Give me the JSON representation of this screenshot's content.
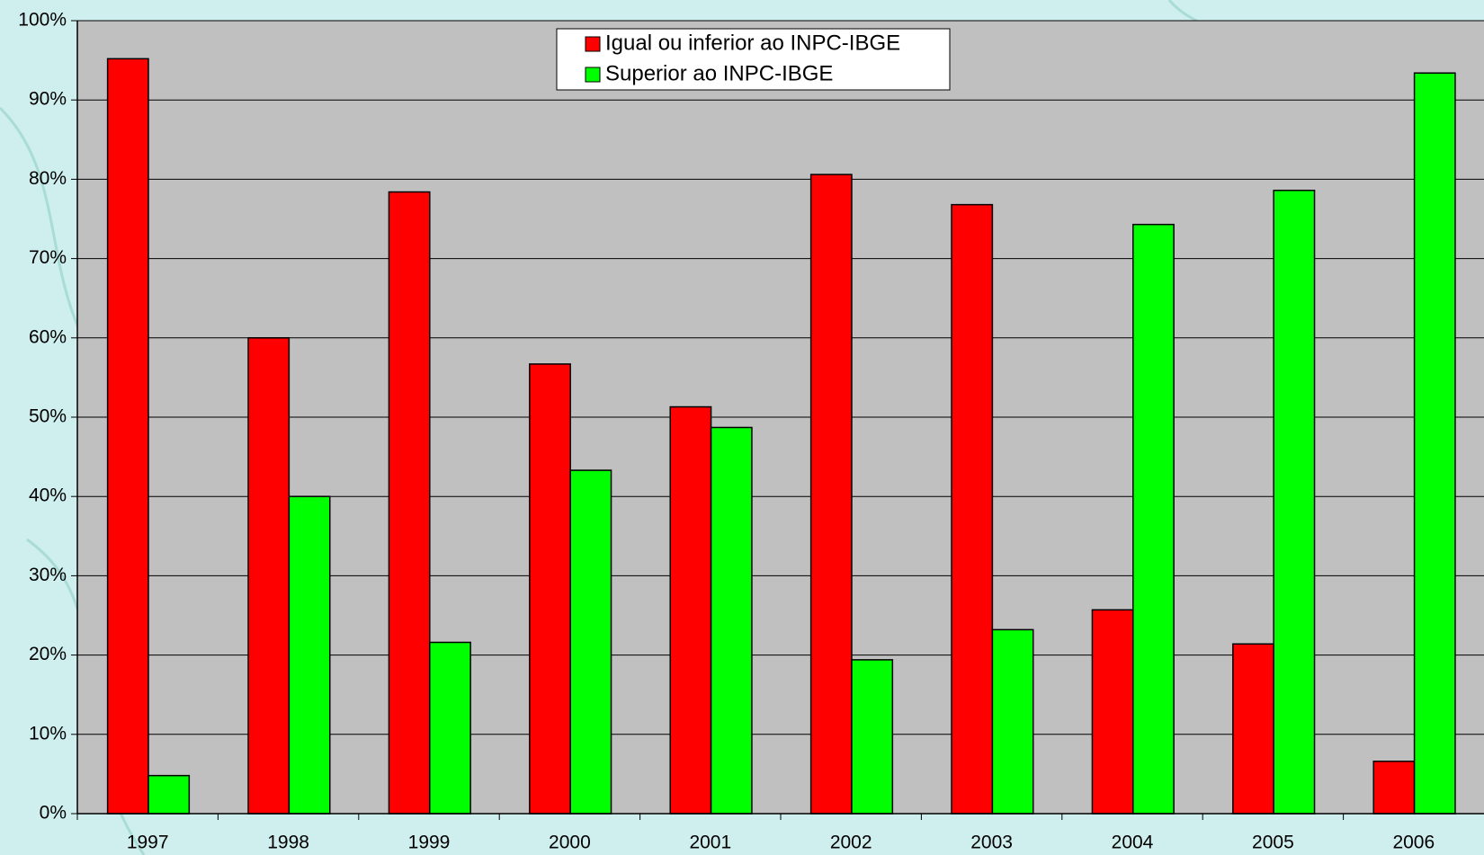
{
  "chart_data": {
    "type": "bar",
    "categories": [
      "1997",
      "1998",
      "1999",
      "2000",
      "2001",
      "2002",
      "2003",
      "2004",
      "2005",
      "2006"
    ],
    "series": [
      {
        "name": "Igual ou inferior ao INPC-IBGE",
        "color": "#ff0000",
        "values": [
          95.2,
          60.0,
          78.4,
          56.7,
          51.3,
          80.6,
          76.8,
          25.7,
          21.4,
          6.6
        ]
      },
      {
        "name": "Superior ao INPC-IBGE",
        "color": "#00ff00",
        "values": [
          4.8,
          40.0,
          21.6,
          43.3,
          48.7,
          19.4,
          23.2,
          74.3,
          78.6,
          93.4
        ]
      }
    ],
    "ylim": [
      0,
      100
    ],
    "yticks": [
      {
        "value": 0,
        "label": "0%"
      },
      {
        "value": 10,
        "label": "10%"
      },
      {
        "value": 20,
        "label": "20%"
      },
      {
        "value": 30,
        "label": "30%"
      },
      {
        "value": 40,
        "label": "40%"
      },
      {
        "value": 50,
        "label": "50%"
      },
      {
        "value": 60,
        "label": "60%"
      },
      {
        "value": 70,
        "label": "70%"
      },
      {
        "value": 80,
        "label": "80%"
      },
      {
        "value": 90,
        "label": "90%"
      },
      {
        "value": 100,
        "label": "100%"
      }
    ],
    "grid": true
  }
}
